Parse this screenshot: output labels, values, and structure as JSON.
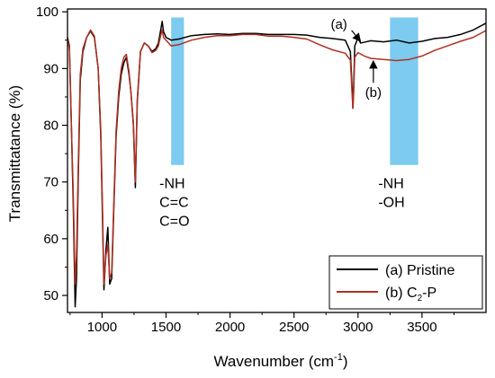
{
  "chart_data": {
    "type": "line",
    "xlabel": "Wavenumber (cm",
    "xlabel_sup": "-1",
    "xlabel_tail": ")",
    "ylabel": "Transmittatance (%)",
    "xlim": [
      730,
      4000
    ],
    "ylim": [
      47,
      100.5
    ],
    "x_ticks": [
      1000,
      1500,
      2000,
      2500,
      3000,
      3500
    ],
    "x_tick_labels": [
      "1000",
      "1500",
      "2000",
      "2500",
      "3000",
      "3500"
    ],
    "y_ticks": [
      50,
      60,
      70,
      80,
      90,
      100
    ],
    "y_tick_labels": [
      "50",
      "60",
      "70",
      "80",
      "90",
      "100"
    ],
    "grid": false,
    "legend_position": "bottom-right",
    "shaded_regions": [
      {
        "x_range": [
          1540,
          1640
        ],
        "y_range": [
          73,
          99
        ],
        "color": "#7dcbf0",
        "labels": [
          "-NH",
          "C=C",
          "C=O"
        ]
      },
      {
        "x_range": [
          3250,
          3470
        ],
        "y_range": [
          73,
          99
        ],
        "color": "#7dcbf0",
        "labels": [
          "-NH",
          "-OH"
        ]
      }
    ],
    "annotations": [
      {
        "text": "(a)",
        "series": 0,
        "arrow_to_x": 3020
      },
      {
        "text": "(b)",
        "series": 1,
        "arrow_to_x": 3120
      }
    ],
    "series": [
      {
        "name": "(a) Pristine",
        "legend_label": "(a) Pristine",
        "color": "#000000",
        "points": [
          [
            730,
            95.5
          ],
          [
            745,
            94
          ],
          [
            760,
            80
          ],
          [
            775,
            66
          ],
          [
            790,
            48
          ],
          [
            800,
            53
          ],
          [
            815,
            72
          ],
          [
            830,
            88
          ],
          [
            850,
            93
          ],
          [
            880,
            95.5
          ],
          [
            910,
            96.6
          ],
          [
            940,
            95.5
          ],
          [
            970,
            90
          ],
          [
            990,
            78
          ],
          [
            1005,
            62
          ],
          [
            1015,
            51
          ],
          [
            1030,
            58
          ],
          [
            1045,
            62
          ],
          [
            1060,
            52
          ],
          [
            1075,
            53
          ],
          [
            1090,
            64
          ],
          [
            1110,
            78
          ],
          [
            1130,
            85
          ],
          [
            1150,
            89
          ],
          [
            1170,
            91
          ],
          [
            1190,
            92
          ],
          [
            1210,
            89
          ],
          [
            1225,
            86
          ],
          [
            1245,
            80
          ],
          [
            1260,
            69
          ],
          [
            1275,
            84
          ],
          [
            1300,
            93
          ],
          [
            1330,
            94.5
          ],
          [
            1360,
            94
          ],
          [
            1390,
            93
          ],
          [
            1420,
            93.5
          ],
          [
            1440,
            94.5
          ],
          [
            1460,
            97
          ],
          [
            1470,
            98.3
          ],
          [
            1480,
            96.5
          ],
          [
            1500,
            95.5
          ],
          [
            1540,
            95
          ],
          [
            1600,
            95.2
          ],
          [
            1700,
            95.8
          ],
          [
            1800,
            96
          ],
          [
            1900,
            96.1
          ],
          [
            2000,
            96
          ],
          [
            2100,
            96.2
          ],
          [
            2200,
            96.2
          ],
          [
            2300,
            96
          ],
          [
            2400,
            96
          ],
          [
            2500,
            96
          ],
          [
            2600,
            95.9
          ],
          [
            2700,
            95.5
          ],
          [
            2800,
            95.3
          ],
          [
            2900,
            95
          ],
          [
            2940,
            93
          ],
          [
            2955,
            86
          ],
          [
            2960,
            83
          ],
          [
            2965,
            86
          ],
          [
            2975,
            94
          ],
          [
            3000,
            95.4
          ],
          [
            3020,
            94.5
          ],
          [
            3040,
            94.6
          ],
          [
            3100,
            94.9
          ],
          [
            3200,
            94.7
          ],
          [
            3300,
            95
          ],
          [
            3400,
            94.5
          ],
          [
            3500,
            94.8
          ],
          [
            3600,
            95.3
          ],
          [
            3700,
            95.5
          ],
          [
            3800,
            96
          ],
          [
            3900,
            96.8
          ],
          [
            4000,
            98
          ]
        ]
      },
      {
        "name": "(b) C2-P",
        "legend_label_main": "(b) C",
        "legend_label_sub": "2",
        "legend_label_tail": "-P",
        "color": "#b03020",
        "points": [
          [
            730,
            95.3
          ],
          [
            745,
            93.5
          ],
          [
            760,
            80
          ],
          [
            775,
            68
          ],
          [
            790,
            52
          ],
          [
            800,
            57
          ],
          [
            815,
            74
          ],
          [
            830,
            89
          ],
          [
            850,
            93.5
          ],
          [
            880,
            95.5
          ],
          [
            910,
            96.8
          ],
          [
            940,
            95.7
          ],
          [
            970,
            90
          ],
          [
            990,
            79
          ],
          [
            1005,
            64
          ],
          [
            1015,
            52
          ],
          [
            1030,
            57
          ],
          [
            1045,
            59
          ],
          [
            1060,
            53
          ],
          [
            1075,
            54
          ],
          [
            1090,
            65
          ],
          [
            1110,
            79
          ],
          [
            1130,
            86
          ],
          [
            1150,
            90
          ],
          [
            1170,
            92
          ],
          [
            1190,
            92.5
          ],
          [
            1210,
            89.5
          ],
          [
            1225,
            86
          ],
          [
            1245,
            80.5
          ],
          [
            1260,
            70
          ],
          [
            1275,
            84.5
          ],
          [
            1300,
            93
          ],
          [
            1330,
            94.5
          ],
          [
            1360,
            94
          ],
          [
            1390,
            92.8
          ],
          [
            1420,
            93.2
          ],
          [
            1440,
            94
          ],
          [
            1460,
            96
          ],
          [
            1470,
            96.8
          ],
          [
            1480,
            95.5
          ],
          [
            1500,
            95
          ],
          [
            1540,
            94
          ],
          [
            1600,
            94.2
          ],
          [
            1700,
            95
          ],
          [
            1800,
            95.5
          ],
          [
            1900,
            95.8
          ],
          [
            2000,
            95.8
          ],
          [
            2100,
            96
          ],
          [
            2200,
            96
          ],
          [
            2300,
            95.7
          ],
          [
            2400,
            95.7
          ],
          [
            2500,
            95.5
          ],
          [
            2600,
            95.2
          ],
          [
            2700,
            94.2
          ],
          [
            2800,
            93.3
          ],
          [
            2900,
            92.7
          ],
          [
            2940,
            91.5
          ],
          [
            2955,
            85
          ],
          [
            2960,
            83
          ],
          [
            2965,
            85
          ],
          [
            2975,
            92
          ],
          [
            3000,
            92.8
          ],
          [
            3050,
            92.2
          ],
          [
            3100,
            91.8
          ],
          [
            3200,
            91.6
          ],
          [
            3300,
            91.4
          ],
          [
            3400,
            91.6
          ],
          [
            3500,
            92.2
          ],
          [
            3600,
            93.2
          ],
          [
            3700,
            94
          ],
          [
            3800,
            94.8
          ],
          [
            3900,
            95.5
          ],
          [
            4000,
            96.7
          ]
        ]
      }
    ]
  }
}
